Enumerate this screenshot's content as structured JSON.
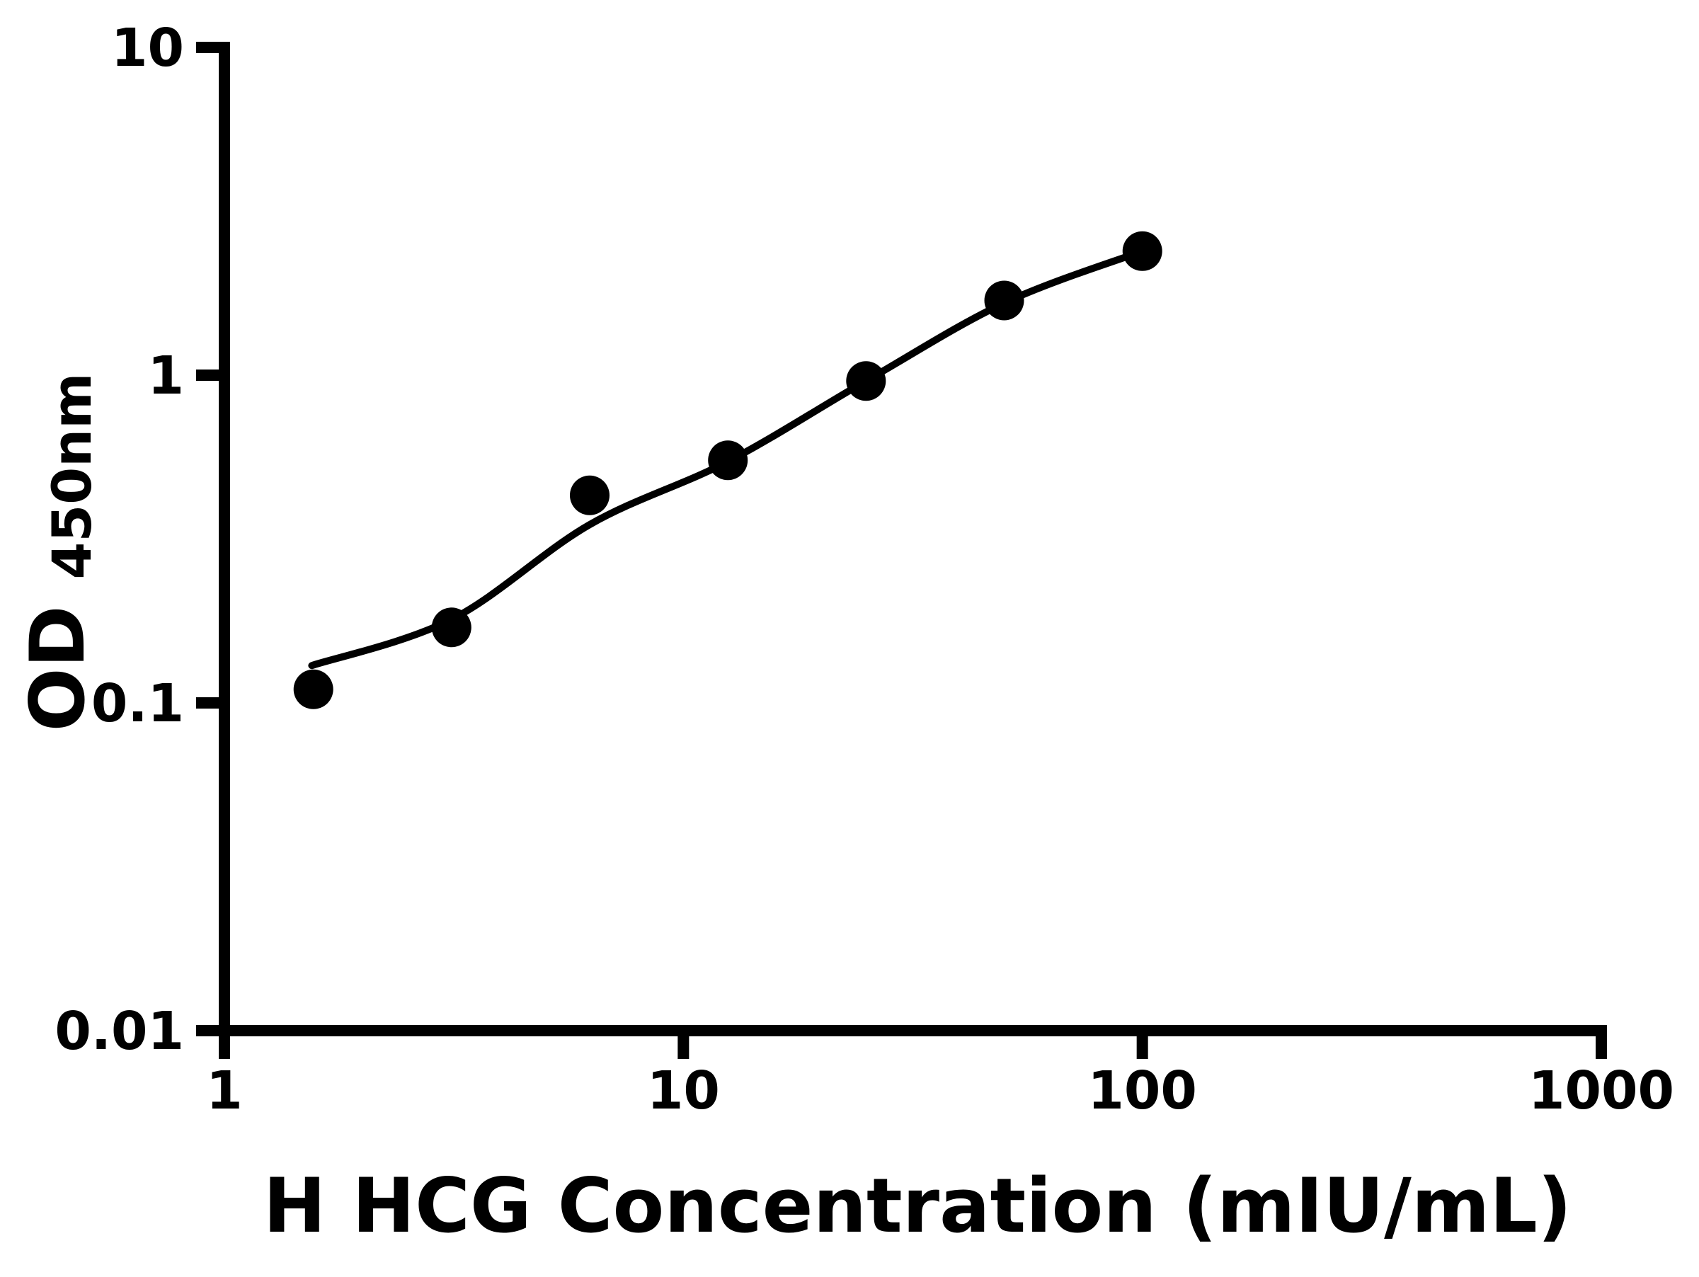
{
  "chart_data": {
    "type": "scatter",
    "xlabel": "H HCG Concentration (mIU/mL)",
    "ylabel_main": "OD",
    "ylabel_sub": "450nm",
    "x_scale": "log",
    "y_scale": "log",
    "xlim": [
      1,
      1000
    ],
    "ylim": [
      0.01,
      10
    ],
    "grid": false,
    "legend": false,
    "background_color": "#ffffff",
    "axis_color": "#000000",
    "marker": {
      "shape": "filled-circle",
      "color": "#000000"
    },
    "fit_line_color": "#000000",
    "x_ticks": {
      "values": [
        1,
        10,
        100,
        1000
      ],
      "labels": [
        "1",
        "10",
        "100",
        "1000"
      ]
    },
    "y_ticks": {
      "values": [
        0.01,
        0.1,
        1,
        10
      ],
      "labels": [
        "0.01",
        "0.1",
        "1",
        "10"
      ]
    },
    "points": [
      {
        "x": 1.5625,
        "y": 0.11
      },
      {
        "x": 3.125,
        "y": 0.17
      },
      {
        "x": 6.25,
        "y": 0.43
      },
      {
        "x": 12.5,
        "y": 0.55
      },
      {
        "x": 25,
        "y": 0.96
      },
      {
        "x": 50,
        "y": 1.69
      },
      {
        "x": 100,
        "y": 2.39
      }
    ],
    "fit_curve": [
      [
        1.55,
        0.13
      ],
      [
        3.13,
        0.18
      ],
      [
        6.25,
        0.35
      ],
      [
        12.5,
        0.545
      ],
      [
        25,
        0.96
      ],
      [
        50,
        1.66
      ],
      [
        100,
        2.39
      ]
    ]
  }
}
